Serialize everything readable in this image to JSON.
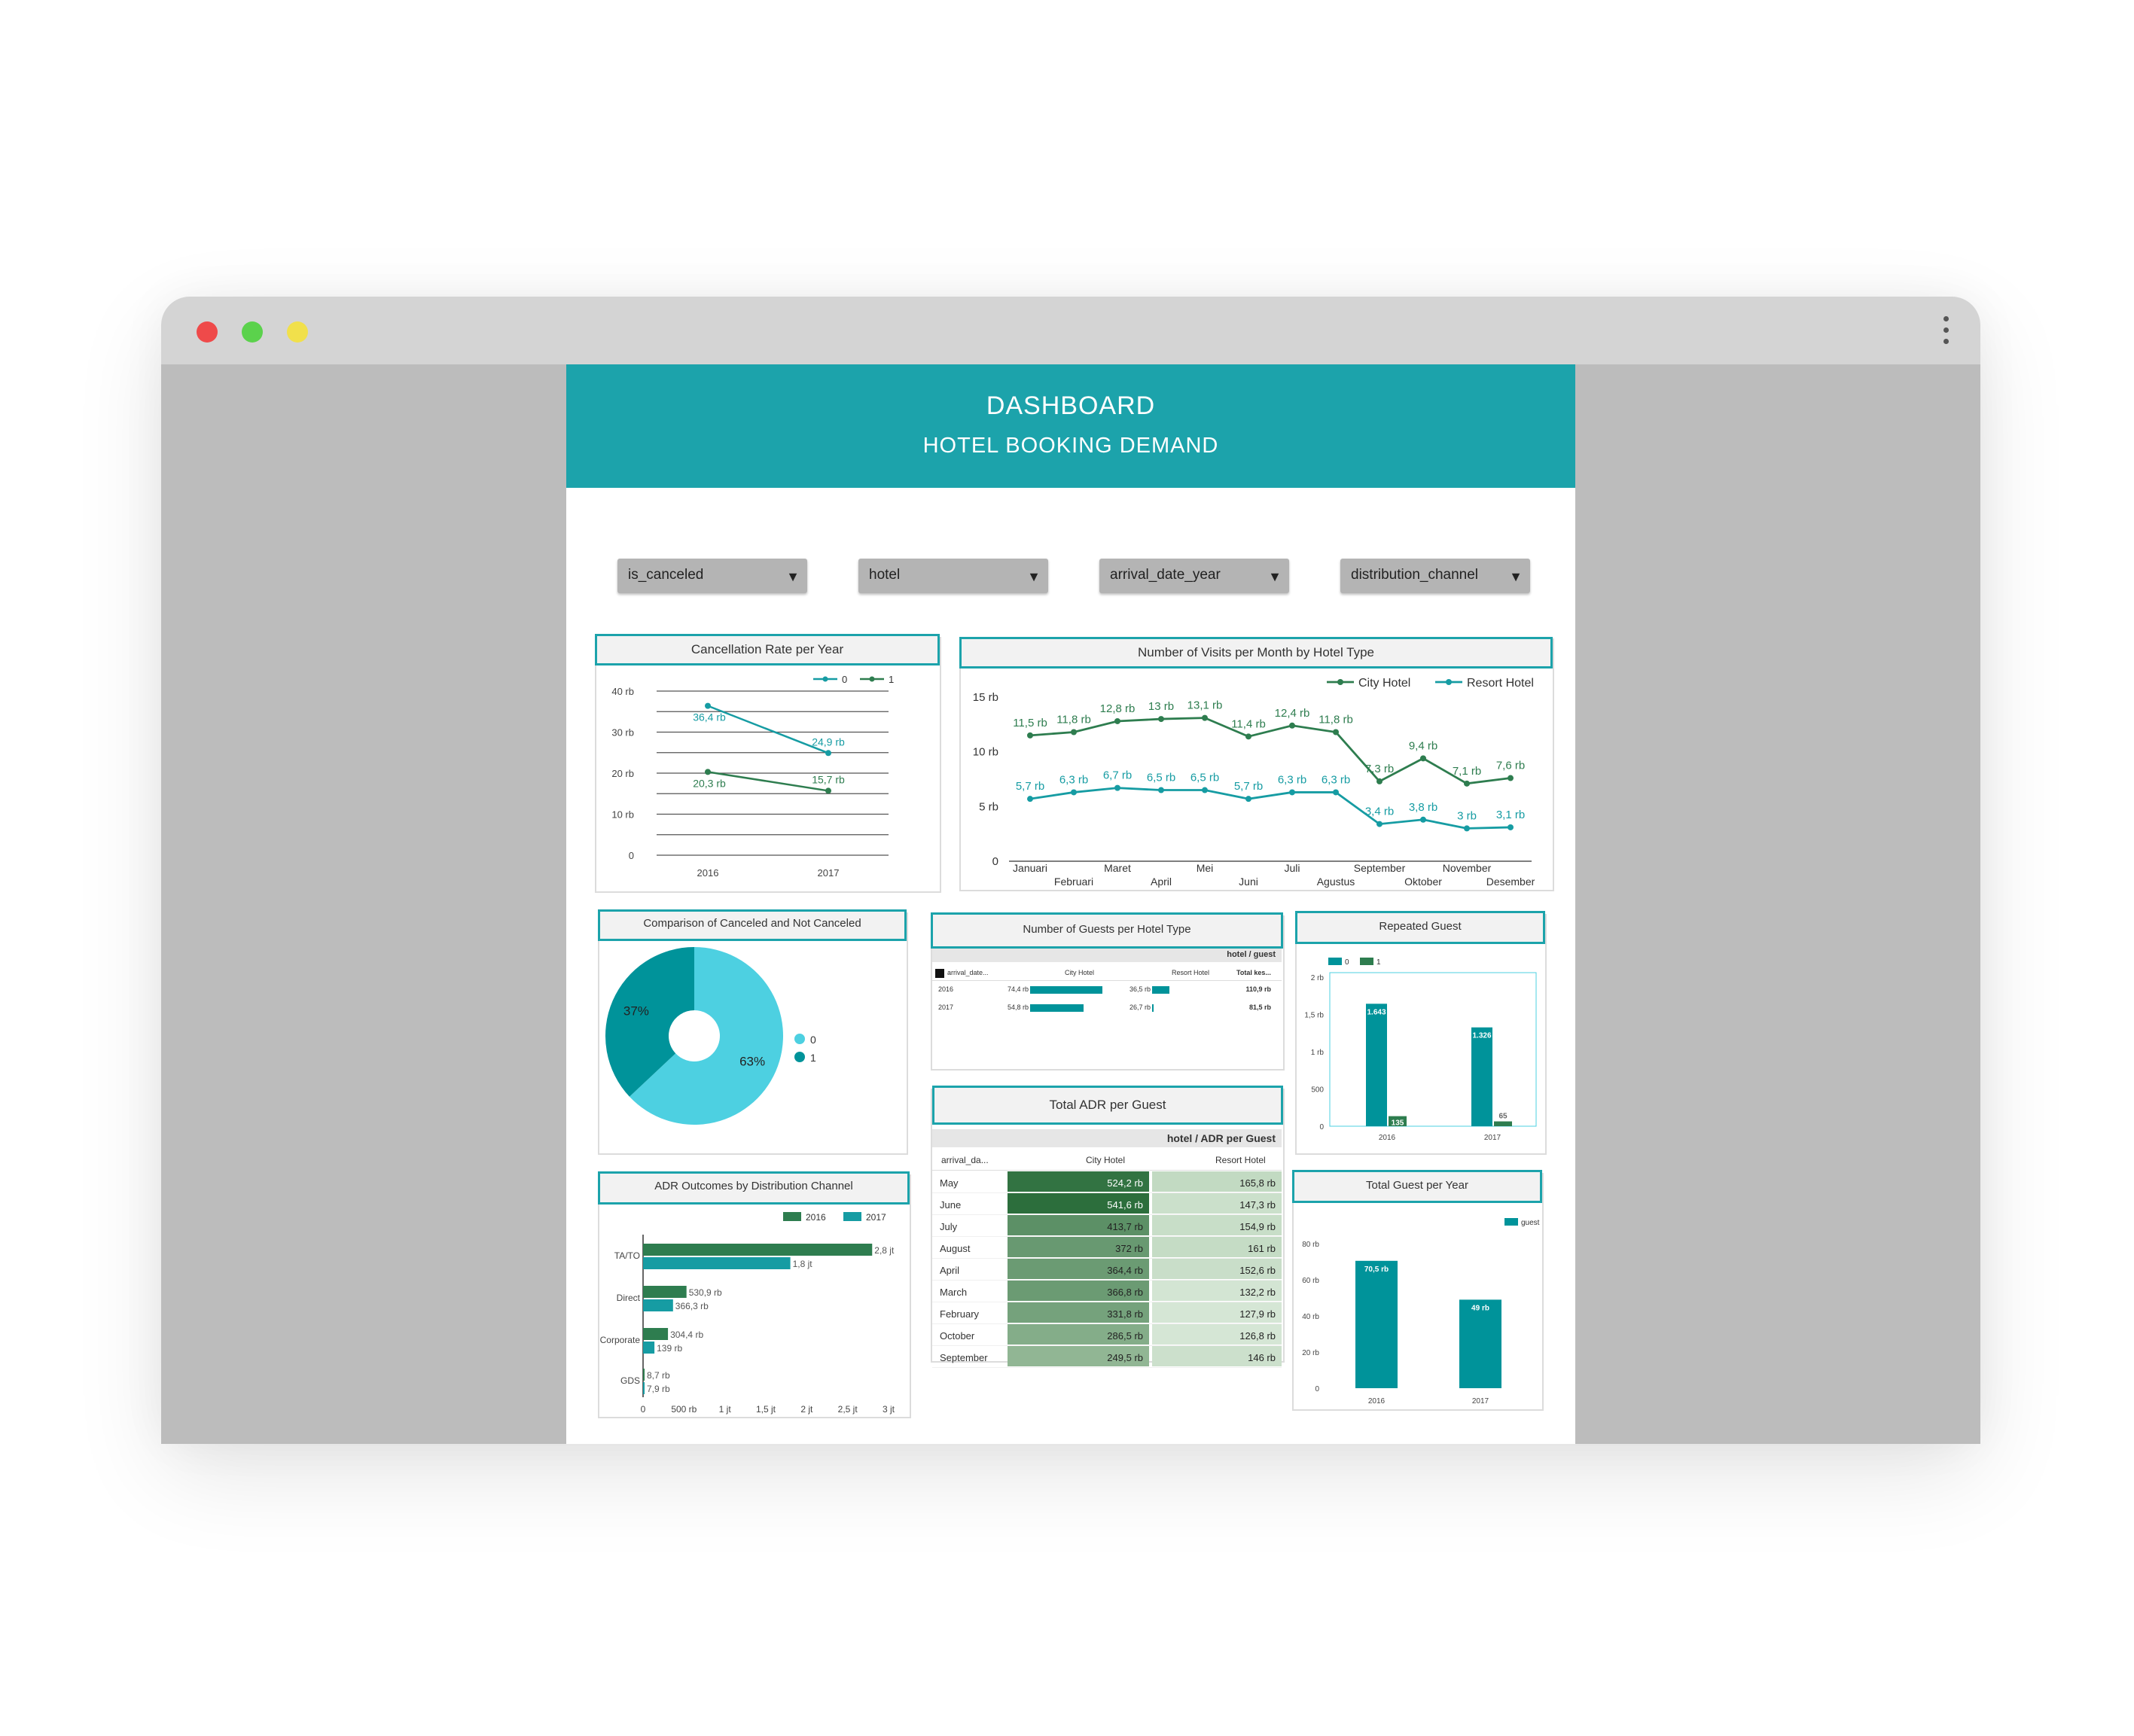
{
  "header": {
    "title": "DASHBOARD",
    "subtitle": "HOTEL BOOKING DEMAND"
  },
  "filters": [
    {
      "label": "is_canceled"
    },
    {
      "label": "hotel"
    },
    {
      "label": "arrival_date_year"
    },
    {
      "label": "distribution_channel"
    }
  ],
  "colors": {
    "teal": "#1ca3ab",
    "dark_green": "#2e7d4f",
    "teal_line": "#169ca3",
    "dark_teal": "#00939a",
    "light_cyan": "#4dd0e1",
    "close": "#ef4a4a",
    "minimize": "#5bd24c",
    "maximize": "#f1e04b"
  },
  "cancel_chart": {
    "title": "Cancellation Rate per Year",
    "chart_data": {
      "type": "line",
      "x": [
        "2016",
        "2017"
      ],
      "series": [
        {
          "name": "0",
          "values": [
            36.4,
            24.9
          ],
          "labels": [
            "36,4 rb",
            "24,9 rb"
          ],
          "color": "#169ca3"
        },
        {
          "name": "1",
          "values": [
            20.3,
            15.7
          ],
          "labels": [
            "20,3 rb",
            "15,7 rb"
          ],
          "color": "#2e7d4f"
        }
      ],
      "yticks": [
        "0",
        "10 rb",
        "20 rb",
        "30 rb",
        "40 rb"
      ],
      "ylim": [
        0,
        40
      ],
      "legend": "top-right",
      "grid": true
    }
  },
  "visits_chart": {
    "title": "Number of Visits per Month by Hotel Type",
    "chart_data": {
      "type": "line",
      "x": [
        "Januari",
        "Februari",
        "Maret",
        "April",
        "Mei",
        "Juni",
        "Juli",
        "Agustus",
        "September",
        "Oktober",
        "November",
        "Desember"
      ],
      "series": [
        {
          "name": "City Hotel",
          "values": [
            11.5,
            11.8,
            12.8,
            13,
            13.1,
            11.4,
            12.4,
            11.8,
            7.3,
            9.4,
            7.1,
            7.6
          ],
          "labels": [
            "11,5 rb",
            "11,8 rb",
            "12,8 rb",
            "13 rb",
            "13,1 rb",
            "11,4 rb",
            "12,4 rb",
            "11,8 rb",
            "7,3 rb",
            "9,4 rb",
            "7,1 rb",
            "7,6 rb"
          ],
          "color": "#2e7d4f"
        },
        {
          "name": "Resort Hotel",
          "values": [
            5.7,
            6.3,
            6.7,
            6.5,
            6.5,
            5.7,
            6.3,
            6.3,
            3.4,
            3.8,
            3,
            3.1
          ],
          "labels": [
            "5,7 rb",
            "6,3 rb",
            "6,7 rb",
            "6,5 rb",
            "6,5 rb",
            "5,7 rb",
            "6,3 rb",
            "6,3 rb",
            "3,4 rb",
            "3,8 rb",
            "3 rb",
            "3,1 rb"
          ],
          "color": "#169ca3"
        }
      ],
      "yticks": [
        "0",
        "5 rb",
        "10 rb",
        "15 rb"
      ],
      "ylim": [
        0,
        15
      ],
      "legend": "top-right",
      "grid": false
    }
  },
  "pie_chart": {
    "title": "Comparison of Canceled and Not Canceled",
    "chart_data": {
      "type": "pie",
      "slices": [
        {
          "name": "0",
          "value": 63,
          "label": "63%",
          "color": "#4dd0e1"
        },
        {
          "name": "1",
          "value": 37,
          "label": "37%",
          "color": "#00939a"
        }
      ],
      "legend": "right"
    }
  },
  "guests_table": {
    "title": "Number of Guests per Hotel Type",
    "group_header": "hotel / guest",
    "col0": "arrival_date...",
    "cols": [
      "City Hotel",
      "Resort Hotel",
      "Total kes..."
    ],
    "rows": [
      {
        "year": "2016",
        "city": "74,4 rb",
        "city_frac": 0.8,
        "resort": "36,5 rb",
        "resort_frac": 0.39,
        "total": "110,9 rb"
      },
      {
        "year": "2017",
        "city": "54,8 rb",
        "city_frac": 0.59,
        "resort": "26,7 rb",
        "resort_frac": 0.04,
        "total": "81,5 rb"
      }
    ]
  },
  "repeated_chart": {
    "title": "Repeated Guest",
    "chart_data": {
      "type": "bar",
      "categories": [
        "2016",
        "2017"
      ],
      "series": [
        {
          "name": "0",
          "values": [
            1643,
            1326
          ],
          "labels": [
            "1.643",
            "1.326"
          ],
          "color": "#00939a"
        },
        {
          "name": "1",
          "values": [
            135,
            65
          ],
          "labels": [
            "135",
            "65"
          ],
          "color": "#2e7d4f"
        }
      ],
      "yticks": [
        "0",
        "500",
        "1 rb",
        "1,5 rb",
        "2 rb"
      ],
      "ylim": [
        0,
        2000
      ],
      "legend": "top-left"
    }
  },
  "adr_table": {
    "title": "Total ADR per Guest",
    "group_header": "hotel / ADR per Guest",
    "col0": "arrival_da...",
    "cols": [
      "City Hotel",
      "Resort Hotel"
    ],
    "rows": [
      {
        "month": "May",
        "city": "524,2 rb",
        "resort": "165,8 rb",
        "city_shade": 0.95,
        "resort_shade": 0.45
      },
      {
        "month": "June",
        "city": "541,6 rb",
        "resort": "147,3 rb",
        "city_shade": 1.0,
        "resort_shade": 0.3
      },
      {
        "month": "July",
        "city": "413,7 rb",
        "resort": "154,9 rb",
        "city_shade": 0.62,
        "resort_shade": 0.36
      },
      {
        "month": "August",
        "city": "372 rb",
        "resort": "161 rb",
        "city_shade": 0.52,
        "resort_shade": 0.41
      },
      {
        "month": "April",
        "city": "364,4 rb",
        "resort": "152,6 rb",
        "city_shade": 0.5,
        "resort_shade": 0.34
      },
      {
        "month": "March",
        "city": "366,8 rb",
        "resort": "132,2 rb",
        "city_shade": 0.5,
        "resort_shade": 0.18
      },
      {
        "month": "February",
        "city": "331,8 rb",
        "resort": "127,9 rb",
        "city_shade": 0.42,
        "resort_shade": 0.15
      },
      {
        "month": "October",
        "city": "286,5 rb",
        "resort": "126,8 rb",
        "city_shade": 0.3,
        "resort_shade": 0.14
      },
      {
        "month": "September",
        "city": "249,5 rb",
        "resort": "146 rb",
        "city_shade": 0.2,
        "resort_shade": 0.29
      }
    ]
  },
  "adr_chart": {
    "title": "ADR Outcomes by Distribution Channel",
    "chart_data": {
      "type": "bar",
      "orientation": "horizontal",
      "categories": [
        "TA/TO",
        "Direct",
        "Corporate",
        "GDS"
      ],
      "series": [
        {
          "name": "2016",
          "values": [
            2.8,
            0.5309,
            0.3044,
            0.0087
          ],
          "labels": [
            "2,8 jt",
            "530,9 rb",
            "304,4 rb",
            "8,7 rb"
          ],
          "color": "#2e7d4f"
        },
        {
          "name": "2017",
          "values": [
            1.8,
            0.3663,
            0.139,
            0.0079
          ],
          "labels": [
            "1,8 jt",
            "366,3 rb",
            "139 rb",
            "7,9 rb"
          ],
          "color": "#169ca3"
        }
      ],
      "xticks": [
        "0",
        "500 rb",
        "1 jt",
        "1,5 jt",
        "2 jt",
        "2,5 jt",
        "3 jt"
      ],
      "xlim": [
        0,
        3
      ],
      "legend": "top-right"
    }
  },
  "total_guest_chart": {
    "title": "Total Guest per Year",
    "chart_data": {
      "type": "bar",
      "categories": [
        "2016",
        "2017"
      ],
      "series": [
        {
          "name": "guest",
          "values": [
            70.5,
            49
          ],
          "labels": [
            "70,5 rb",
            "49 rb"
          ],
          "color": "#00939a"
        }
      ],
      "yticks": [
        "0",
        "20 rb",
        "40 rb",
        "60 rb",
        "80 rb"
      ],
      "ylim": [
        0,
        80
      ],
      "legend": "top-right"
    }
  }
}
